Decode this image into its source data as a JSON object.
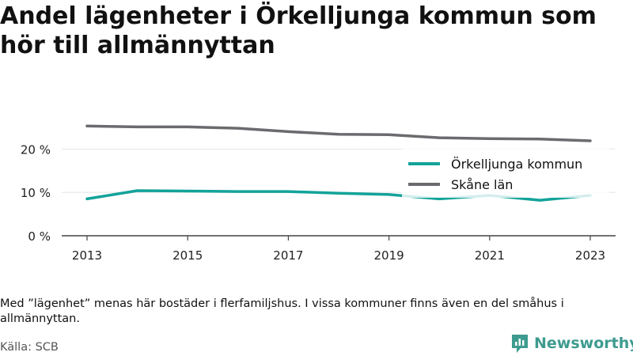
{
  "title": "Andel lägenheter i Örkelljunga kommun som hör till allmännyttan",
  "note": "Med ”lägenhet” menas här bostäder i flerfamiljshus. I vissa kommuner finns även en del småhus i allmännyttan.",
  "source": "Källa: SCB",
  "brand": {
    "name": "Newsworthy",
    "color": "#3e9b8f"
  },
  "chart_data": {
    "type": "line",
    "x": [
      2013,
      2014,
      2015,
      2016,
      2017,
      2018,
      2019,
      2020,
      2021,
      2022,
      2023
    ],
    "x_ticks": [
      "2013",
      "2015",
      "2017",
      "2019",
      "2021",
      "2023"
    ],
    "y_ticks": [
      "0 %",
      "10 %",
      "20 %"
    ],
    "ylim": [
      0,
      27
    ],
    "grid": true,
    "legend_position": "top-right",
    "series": [
      {
        "name": "Örkelljunga kommun",
        "color": "#13a39a",
        "values": [
          8.5,
          10.4,
          10.3,
          10.2,
          10.2,
          9.8,
          9.5,
          8.5,
          9.3,
          8.2,
          9.3
        ]
      },
      {
        "name": "Skåne län",
        "color": "#6b6b6f",
        "values": [
          25.3,
          25.1,
          25.1,
          24.8,
          24.0,
          23.4,
          23.3,
          22.6,
          22.4,
          22.3,
          21.9
        ]
      }
    ]
  }
}
